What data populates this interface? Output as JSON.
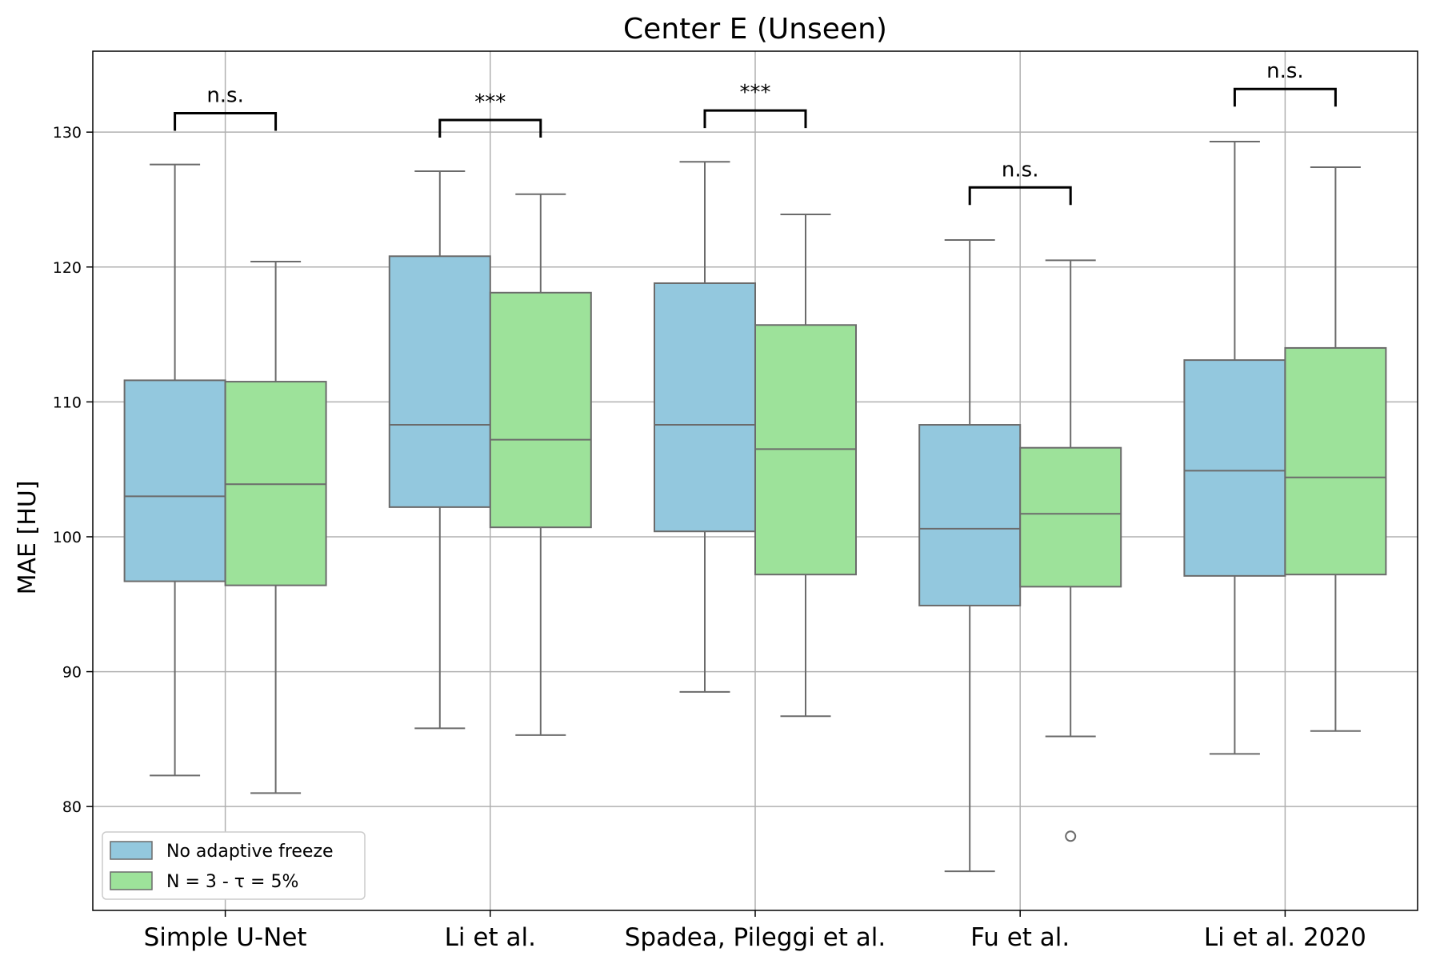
{
  "chart_data": {
    "type": "box",
    "title": "Center E (Unseen)",
    "xlabel": "",
    "ylabel": "MAE [HU]",
    "ylim": [
      72.3,
      136.0
    ],
    "yticks": [
      80,
      90,
      100,
      110,
      120,
      130
    ],
    "grid": true,
    "legend_position": "lower-left",
    "categories": [
      "Simple U-Net",
      "Li et al.",
      "Spadea, Pileggi et al.",
      "Fu et al.",
      "Li et al. 2020"
    ],
    "series": [
      {
        "name": "No adaptive freeze",
        "color": "#93c8de",
        "boxes": [
          {
            "whislo": 82.3,
            "q1": 96.7,
            "med": 103.0,
            "q3": 111.6,
            "whishi": 127.6,
            "fliers": []
          },
          {
            "whislo": 85.8,
            "q1": 102.2,
            "med": 108.3,
            "q3": 120.8,
            "whishi": 127.1,
            "fliers": []
          },
          {
            "whislo": 88.5,
            "q1": 100.4,
            "med": 108.3,
            "q3": 118.8,
            "whishi": 127.8,
            "fliers": []
          },
          {
            "whislo": 75.2,
            "q1": 94.9,
            "med": 100.6,
            "q3": 108.3,
            "whishi": 122.0,
            "fliers": []
          },
          {
            "whislo": 83.9,
            "q1": 97.1,
            "med": 104.9,
            "q3": 113.1,
            "whishi": 129.3,
            "fliers": []
          }
        ]
      },
      {
        "name": "N = 3 - τ = 5%",
        "color": "#9de29a",
        "boxes": [
          {
            "whislo": 81.0,
            "q1": 96.4,
            "med": 103.9,
            "q3": 111.5,
            "whishi": 120.4,
            "fliers": []
          },
          {
            "whislo": 85.3,
            "q1": 100.7,
            "med": 107.2,
            "q3": 118.1,
            "whishi": 125.4,
            "fliers": []
          },
          {
            "whislo": 86.7,
            "q1": 97.2,
            "med": 106.5,
            "q3": 115.7,
            "whishi": 123.9,
            "fliers": []
          },
          {
            "whislo": 85.2,
            "q1": 96.3,
            "med": 101.7,
            "q3": 106.6,
            "whishi": 120.5,
            "fliers": [
              77.8
            ]
          },
          {
            "whislo": 85.6,
            "q1": 97.2,
            "med": 104.4,
            "q3": 114.0,
            "whishi": 127.4,
            "fliers": []
          }
        ]
      }
    ],
    "significance": [
      {
        "label": "n.s.",
        "bracket_y": 131.4
      },
      {
        "label": "***",
        "bracket_y": 130.9
      },
      {
        "label": "***",
        "bracket_y": 131.6
      },
      {
        "label": "n.s.",
        "bracket_y": 125.9
      },
      {
        "label": "n.s.",
        "bracket_y": 133.2
      }
    ],
    "colors": {
      "box_edge": "#6b6b6b",
      "grid": "#b0b0b0",
      "bracket": "#000000"
    }
  }
}
